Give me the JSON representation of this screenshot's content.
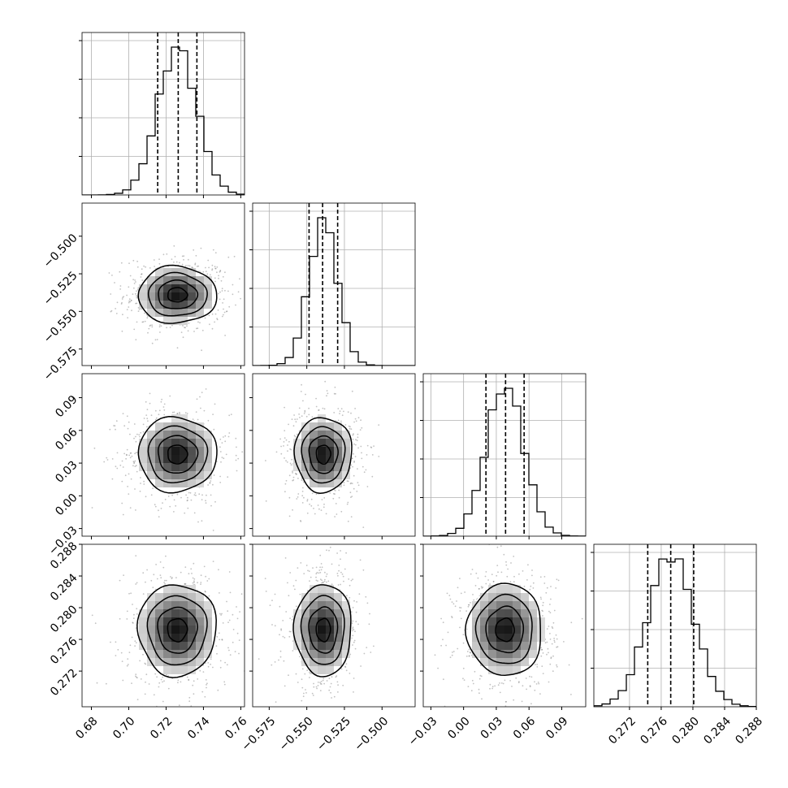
{
  "chart_data": {
    "type": "corner",
    "title": "",
    "grid": true,
    "parameters": [
      {
        "name": "",
        "range": [
          0.675,
          0.762
        ],
        "ticks": [
          "0.68",
          "0.70",
          "0.72",
          "0.74",
          "0.76"
        ],
        "quantiles": [
          0.7155,
          0.7265,
          0.7365
        ],
        "mean": 0.726,
        "sd": 0.0105
      },
      {
        "name": "",
        "range": [
          -0.586,
          -0.478
        ],
        "ticks": [
          "−0.575",
          "−0.550",
          "−0.525",
          "−0.500"
        ],
        "quantiles": [
          -0.5485,
          -0.5395,
          -0.5295
        ],
        "mean": -0.539,
        "sd": 0.0095
      },
      {
        "name": "",
        "range": [
          -0.037,
          0.112
        ],
        "ticks": [
          "−0.03",
          "0.00",
          "0.03",
          "0.06",
          "0.09"
        ],
        "quantiles": [
          0.0205,
          0.0385,
          0.0555
        ],
        "mean": 0.038,
        "sd": 0.0172
      },
      {
        "name": "",
        "range": [
          0.2675,
          0.288
        ],
        "ticks": [
          "0.272",
          "0.276",
          "0.280",
          "0.284",
          "0.288"
        ],
        "quantiles": [
          0.2743,
          0.2772,
          0.2801
        ],
        "mean": 0.2772,
        "sd": 0.0029
      }
    ],
    "panels": [
      {
        "row": 0,
        "col": 0,
        "type": "histogram"
      },
      {
        "row": 1,
        "col": 0,
        "type": "density"
      },
      {
        "row": 1,
        "col": 1,
        "type": "histogram"
      },
      {
        "row": 2,
        "col": 0,
        "type": "density"
      },
      {
        "row": 2,
        "col": 1,
        "type": "density"
      },
      {
        "row": 2,
        "col": 2,
        "type": "histogram"
      },
      {
        "row": 3,
        "col": 0,
        "type": "density"
      },
      {
        "row": 3,
        "col": 1,
        "type": "density"
      },
      {
        "row": 3,
        "col": 2,
        "type": "density"
      },
      {
        "row": 3,
        "col": 3,
        "type": "histogram"
      }
    ],
    "histogram_bins": 20,
    "contour_levels": [
      0.5,
      1.0,
      1.5,
      2.0
    ]
  }
}
